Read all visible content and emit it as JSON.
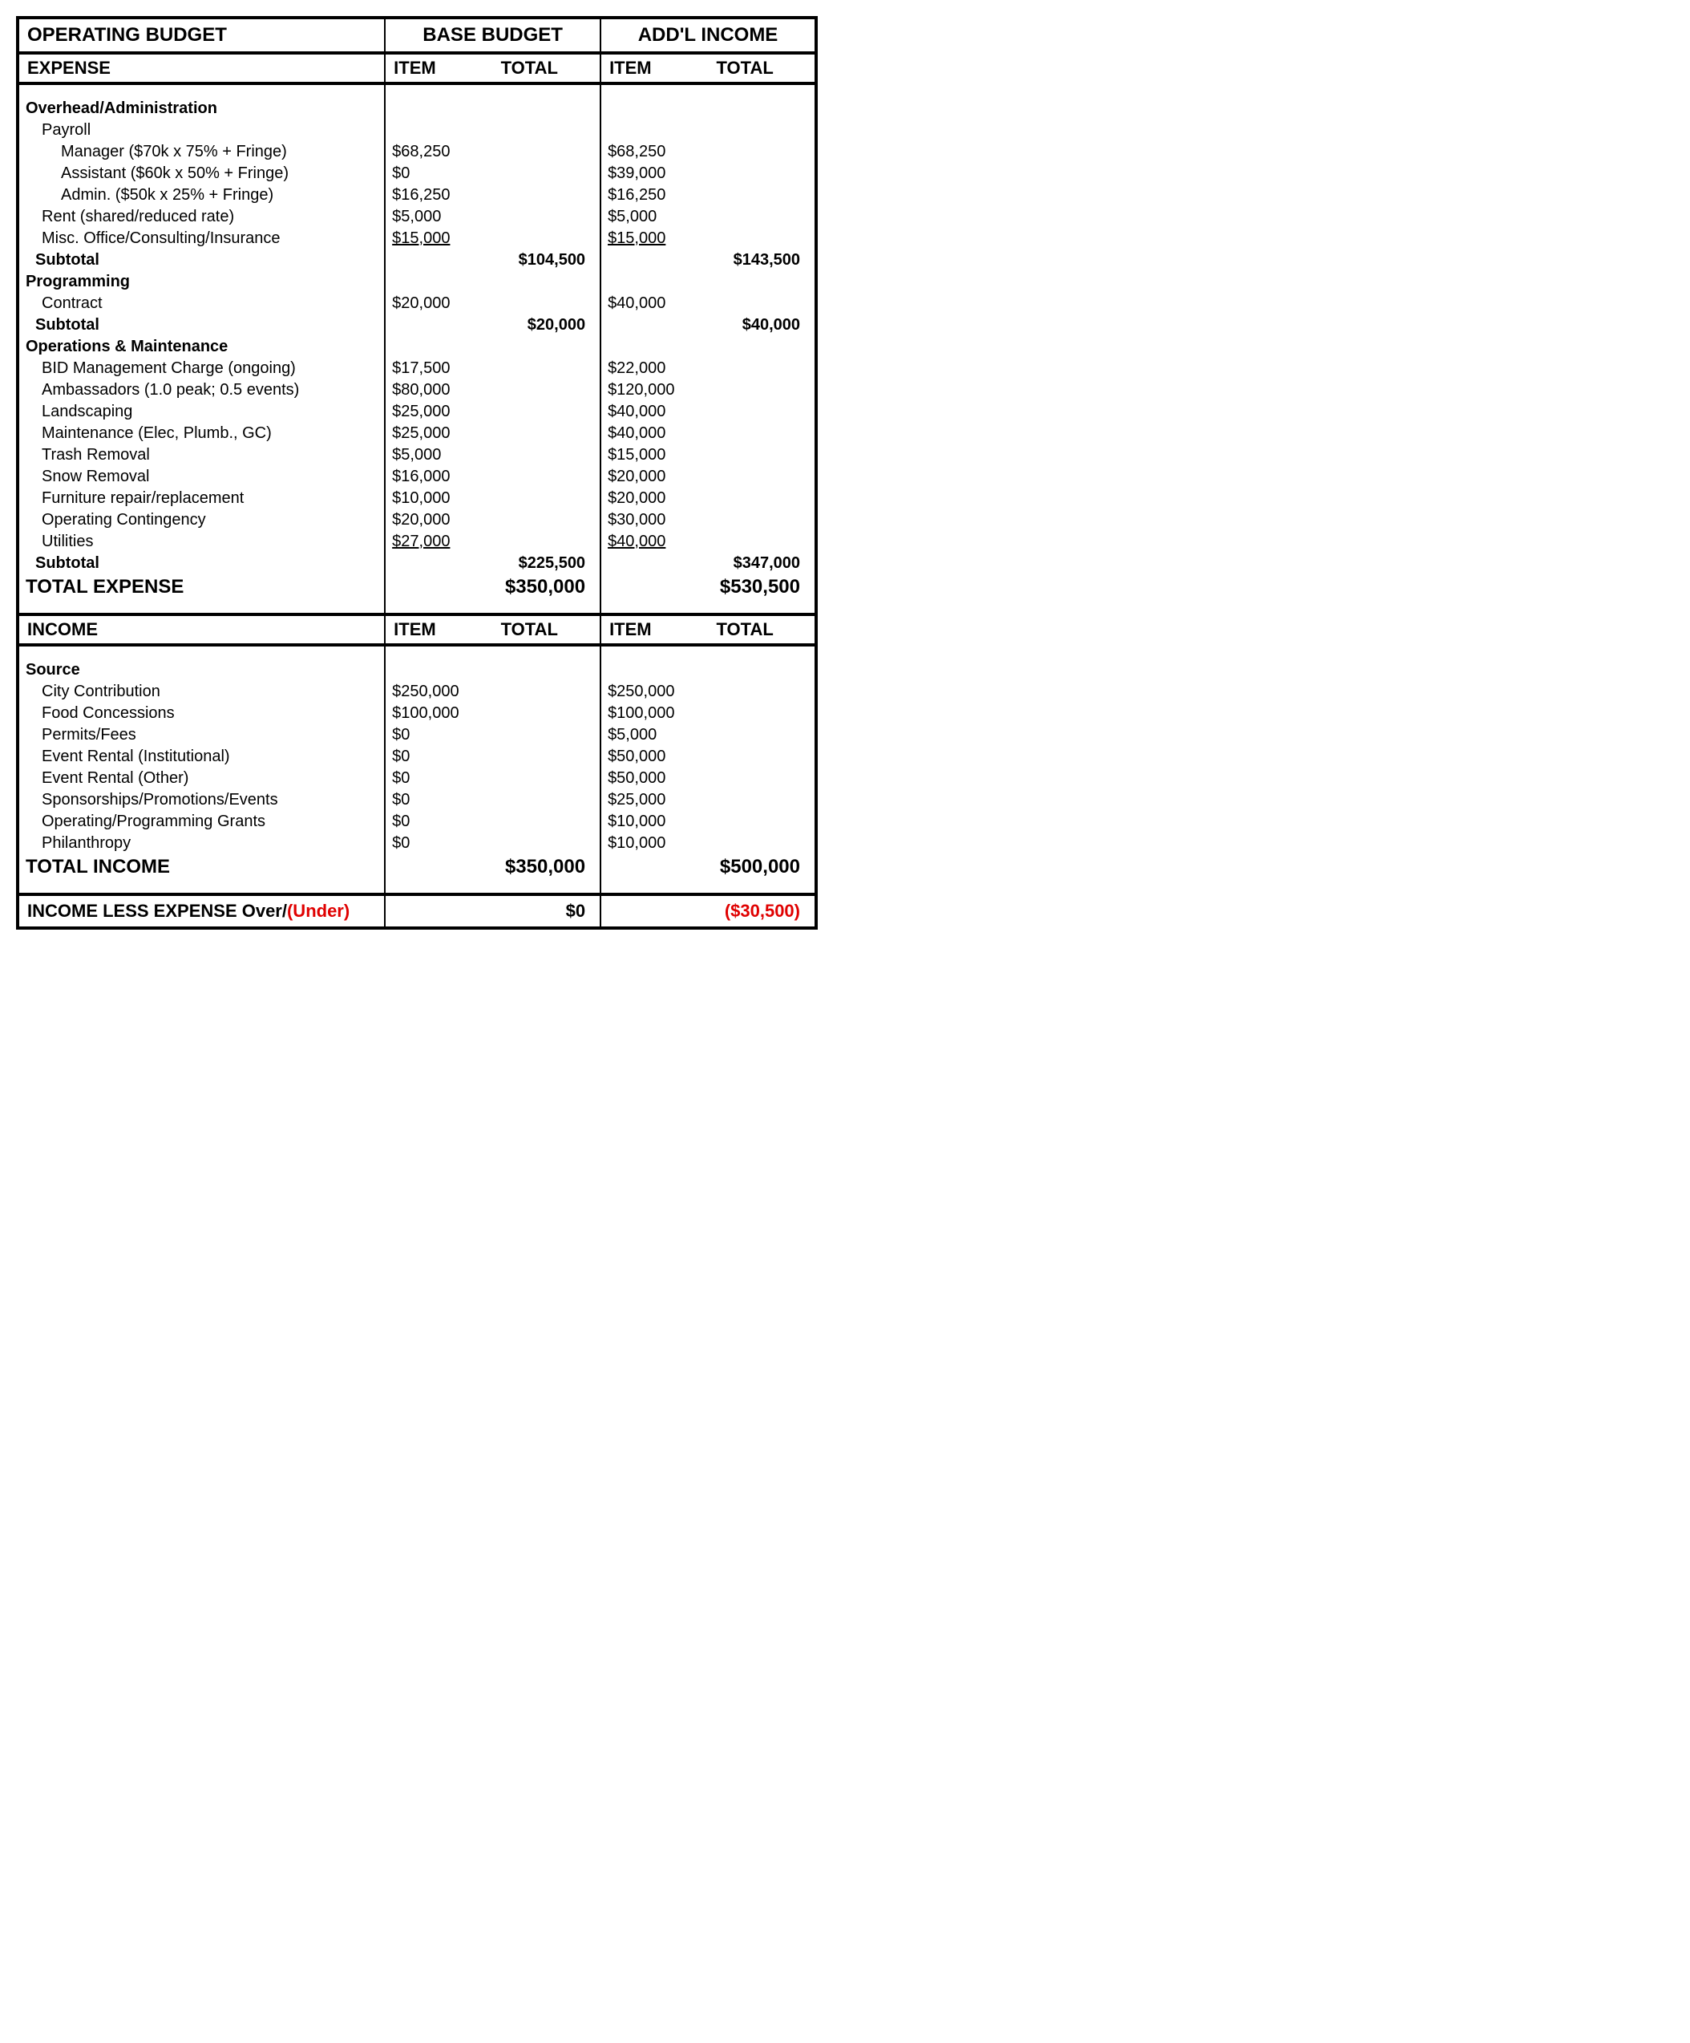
{
  "title": "OPERATING BUDGET",
  "cols": {
    "base": "BASE BUDGET",
    "addl": "ADD'L INCOME",
    "item": "ITEM",
    "total": "TOTAL"
  },
  "expense": {
    "header": "EXPENSE",
    "overhead": {
      "title": "Overhead/Administration",
      "payroll": "Payroll",
      "rows": [
        {
          "label": "Manager ($70k x 75% + Fringe)",
          "base": "$68,250",
          "addl": "$68,250",
          "indent": 2
        },
        {
          "label": "Assistant ($60k x 50% + Fringe)",
          "base": "$0",
          "addl": "$39,000",
          "indent": 2
        },
        {
          "label": "Admin. ($50k x 25% + Fringe)",
          "base": "$16,250",
          "addl": "$16,250",
          "indent": 2
        },
        {
          "label": "Rent (shared/reduced rate)",
          "base": "$5,000",
          "addl": "$5,000",
          "indent": 1
        },
        {
          "label": "Misc. Office/Consulting/Insurance",
          "base": "$15,000",
          "addl": "$15,000",
          "indent": 1,
          "underline": true
        }
      ],
      "subtotal": {
        "label": "Subtotal",
        "base": "$104,500",
        "addl": "$143,500"
      }
    },
    "programming": {
      "title": "Programming",
      "rows": [
        {
          "label": "Contract",
          "base": "$20,000",
          "addl": "$40,000",
          "indent": 1
        }
      ],
      "subtotal": {
        "label": "Subtotal",
        "base": "$20,000",
        "addl": "$40,000"
      }
    },
    "ops": {
      "title": "Operations & Maintenance",
      "rows": [
        {
          "label": "BID Management Charge (ongoing)",
          "base": "$17,500",
          "addl": "$22,000",
          "indent": 1
        },
        {
          "label": "Ambassadors (1.0 peak; 0.5 events)",
          "base": "$80,000",
          "addl": "$120,000",
          "indent": 1
        },
        {
          "label": "Landscaping",
          "base": "$25,000",
          "addl": "$40,000",
          "indent": 1
        },
        {
          "label": "Maintenance (Elec, Plumb., GC)",
          "base": "$25,000",
          "addl": "$40,000",
          "indent": 1
        },
        {
          "label": "Trash Removal",
          "base": "$5,000",
          "addl": "$15,000",
          "indent": 1
        },
        {
          "label": "Snow Removal",
          "base": "$16,000",
          "addl": "$20,000",
          "indent": 1
        },
        {
          "label": "Furniture repair/replacement",
          "base": "$10,000",
          "addl": "$20,000",
          "indent": 1
        },
        {
          "label": "Operating Contingency",
          "base": "$20,000",
          "addl": "$30,000",
          "indent": 1
        },
        {
          "label": "Utilities",
          "base": "$27,000",
          "addl": "$40,000",
          "indent": 1,
          "underline": true
        }
      ],
      "subtotal": {
        "label": "Subtotal",
        "base": "$225,500",
        "addl": "$347,000"
      }
    },
    "total": {
      "label": "TOTAL EXPENSE",
      "base": "$350,000",
      "addl": "$530,500"
    }
  },
  "income": {
    "header": "INCOME",
    "source": {
      "title": "Source",
      "rows": [
        {
          "label": "City Contribution",
          "base": "$250,000",
          "addl": "$250,000",
          "indent": 1
        },
        {
          "label": "Food Concessions",
          "base": "$100,000",
          "addl": "$100,000",
          "indent": 1
        },
        {
          "label": "Permits/Fees",
          "base": "$0",
          "addl": "$5,000",
          "indent": 1
        },
        {
          "label": "Event Rental (Institutional)",
          "base": "$0",
          "addl": "$50,000",
          "indent": 1
        },
        {
          "label": "Event Rental (Other)",
          "base": "$0",
          "addl": "$50,000",
          "indent": 1
        },
        {
          "label": "Sponsorships/Promotions/Events",
          "base": "$0",
          "addl": "$25,000",
          "indent": 1
        },
        {
          "label": "Operating/Programming Grants",
          "base": "$0",
          "addl": "$10,000",
          "indent": 1
        },
        {
          "label": "Philanthropy",
          "base": "$0",
          "addl": "$10,000",
          "indent": 1
        }
      ]
    },
    "total": {
      "label": "TOTAL INCOME",
      "base": "$350,000",
      "addl": "$500,000"
    }
  },
  "footer": {
    "label_a": "INCOME LESS EXPENSE Over/",
    "label_b": "(Under)",
    "base": "$0",
    "addl": "($30,500)"
  }
}
